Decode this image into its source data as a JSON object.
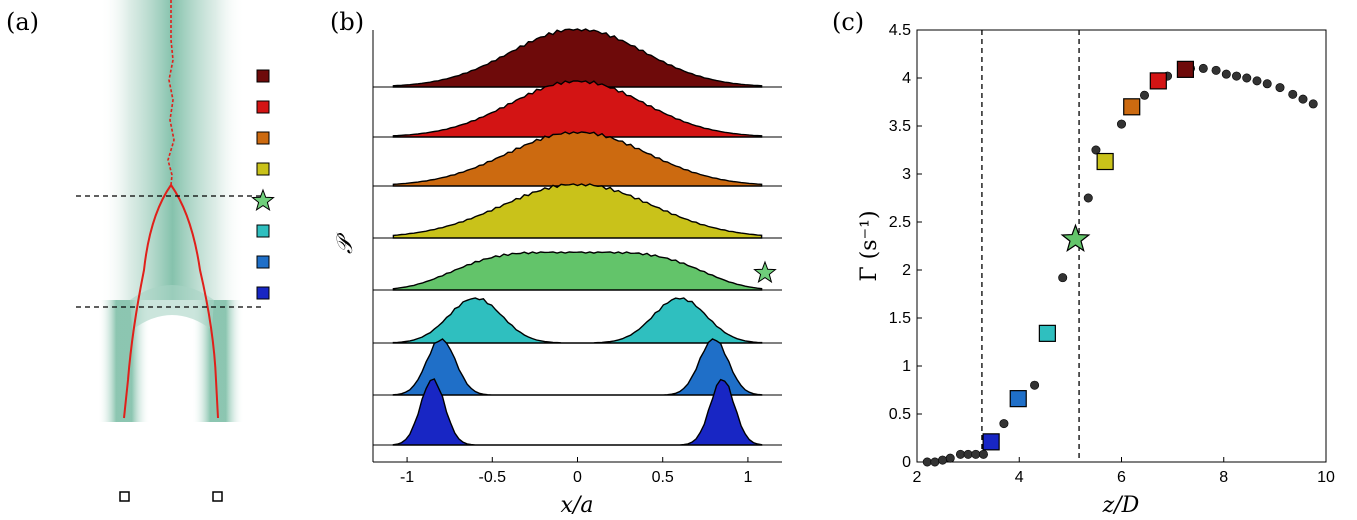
{
  "panels": {
    "a": "(a)",
    "b": "(b)",
    "c": "(c)"
  },
  "colors": {
    "levels": [
      "#6e0a0a",
      "#d31414",
      "#cc6a10",
      "#c9c21a",
      "#63c46a",
      "#2fbfbf",
      "#1f6fc8",
      "#1826c4"
    ],
    "star": "#6fcf7b",
    "trace": "#e0201a",
    "flow": "#8fc7b4"
  },
  "chart_data": [
    {
      "panel": "(a)",
      "type": "other",
      "legend_markers": [
        "square",
        "square",
        "square",
        "square",
        "star",
        "square",
        "square",
        "square"
      ]
    },
    {
      "panel": "(b)",
      "type": "area",
      "xlabel": "x/a",
      "ylabel": "𝒫",
      "xlim": [
        -1.2,
        1.2
      ],
      "xticks": [
        -1,
        -0.5,
        0,
        0.5,
        1
      ],
      "xtick_labels": [
        "-1",
        "-0.5",
        "0",
        "0.5",
        "1"
      ],
      "profiles": [
        {
          "shape": "unimodal",
          "peak_x": 0.0,
          "width": 0.55
        },
        {
          "shape": "unimodal",
          "peak_x": 0.0,
          "width": 0.55
        },
        {
          "shape": "unimodal",
          "peak_x": 0.0,
          "width": 0.58
        },
        {
          "shape": "unimodal",
          "peak_x": 0.0,
          "width": 0.62
        },
        {
          "shape": "flat",
          "peak_x": 0.0,
          "width": 0.8
        },
        {
          "shape": "bimodal",
          "peak_x": 0.6,
          "width": 0.22
        },
        {
          "shape": "bimodal",
          "peak_x": 0.8,
          "width": 0.12
        },
        {
          "shape": "bimodal",
          "peak_x": 0.85,
          "width": 0.1
        }
      ]
    },
    {
      "panel": "(c)",
      "type": "scatter",
      "xlabel": "z/D",
      "ylabel": "Γ (s⁻¹)",
      "xlim": [
        2,
        10
      ],
      "ylim": [
        0,
        4.5
      ],
      "xticks": [
        2,
        4,
        6,
        8,
        10
      ],
      "xtick_labels": [
        "2",
        "4",
        "6",
        "8",
        "10"
      ],
      "yticks": [
        0,
        0.5,
        1,
        1.5,
        2,
        2.5,
        3,
        3.5,
        4,
        4.5
      ],
      "ytick_labels": [
        "0",
        "0.5",
        "1",
        "1.5",
        "2",
        "2.5",
        "3",
        "3.5",
        "4",
        "4.5"
      ],
      "vlines": [
        3.27,
        5.17
      ],
      "dots": {
        "x": [
          2.2,
          2.35,
          2.5,
          2.65,
          2.85,
          3.0,
          3.15,
          3.3,
          3.7,
          4.3,
          4.85,
          5.35,
          5.5,
          6.0,
          6.45,
          6.9,
          7.35,
          7.6,
          7.85,
          8.05,
          8.25,
          8.45,
          8.65,
          8.85,
          9.1,
          9.35,
          9.55,
          9.75
        ],
        "y": [
          0.0,
          0.0,
          0.02,
          0.04,
          0.08,
          0.08,
          0.08,
          0.08,
          0.4,
          0.8,
          1.92,
          2.75,
          3.25,
          3.52,
          3.82,
          4.02,
          4.1,
          4.1,
          4.08,
          4.04,
          4.02,
          4.0,
          3.97,
          3.94,
          3.9,
          3.83,
          3.78,
          3.73
        ]
      },
      "markers": [
        {
          "x": 3.45,
          "y": 0.21,
          "shape": "square",
          "color_index": 7
        },
        {
          "x": 3.98,
          "y": 0.66,
          "shape": "square",
          "color_index": 6
        },
        {
          "x": 4.55,
          "y": 1.34,
          "shape": "square",
          "color_index": 5
        },
        {
          "x": 5.1,
          "y": 2.32,
          "shape": "star",
          "color_index": 4
        },
        {
          "x": 5.68,
          "y": 3.13,
          "shape": "square",
          "color_index": 3
        },
        {
          "x": 6.2,
          "y": 3.7,
          "shape": "square",
          "color_index": 2
        },
        {
          "x": 6.72,
          "y": 3.97,
          "shape": "square",
          "color_index": 1
        },
        {
          "x": 7.25,
          "y": 4.09,
          "shape": "square",
          "color_index": 0
        }
      ]
    }
  ]
}
